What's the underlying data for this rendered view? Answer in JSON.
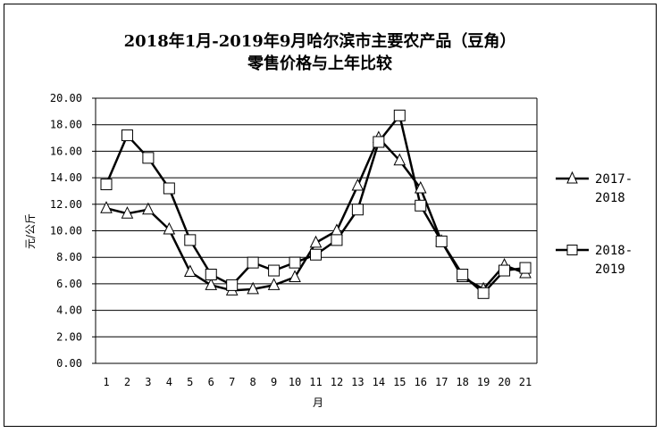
{
  "chart_data": {
    "type": "line",
    "title_line1": "2018年1月-2019年9月哈尔滨市主要农产品（豆角）",
    "title_line2": "零售价格与上年比较",
    "xlabel": "月",
    "ylabel": "元/公斤",
    "categories": [
      "1",
      "2",
      "3",
      "4",
      "5",
      "6",
      "7",
      "8",
      "9",
      "10",
      "11",
      "12",
      "13",
      "14",
      "15",
      "16",
      "17",
      "18",
      "19",
      "20",
      "21"
    ],
    "y_ticks": [
      "0.00",
      "2.00",
      "4.00",
      "6.00",
      "8.00",
      "10.00",
      "12.00",
      "14.00",
      "16.00",
      "18.00",
      "20.00"
    ],
    "ylim": [
      0,
      20
    ],
    "grid": "horizontal",
    "legend_position": "right",
    "series": [
      {
        "name_line1": "2017-",
        "name_line2": "2018",
        "marker": "triangle",
        "values": [
          11.7,
          11.3,
          11.6,
          10.1,
          6.9,
          5.9,
          5.5,
          5.6,
          5.9,
          6.5,
          9.1,
          10.0,
          13.4,
          17.0,
          15.3,
          13.2,
          9.2,
          6.5,
          5.6,
          7.4,
          6.8
        ]
      },
      {
        "name_line1": "2018-",
        "name_line2": "2019",
        "marker": "square",
        "values": [
          13.5,
          17.2,
          15.5,
          13.2,
          9.3,
          6.7,
          5.9,
          7.6,
          7.0,
          7.6,
          8.2,
          9.3,
          11.6,
          16.7,
          18.7,
          11.9,
          9.2,
          6.7,
          5.3,
          7.0,
          7.2
        ]
      }
    ],
    "colors": {
      "line": "#000000",
      "grid": "#000000",
      "marker_fill": "#ffffff"
    }
  }
}
